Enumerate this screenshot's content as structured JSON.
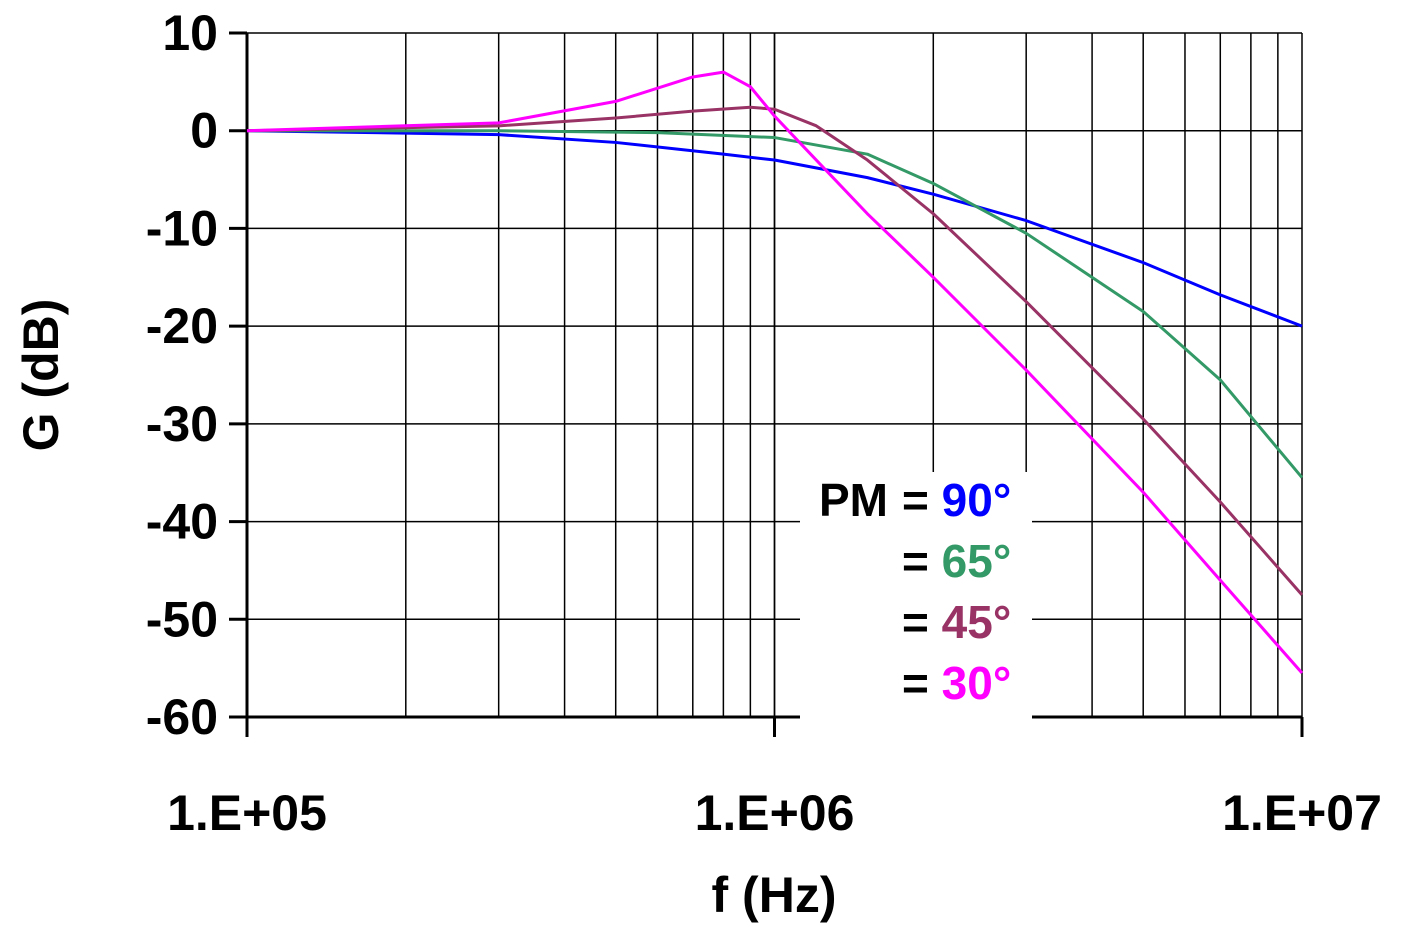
{
  "chart_data": {
    "type": "line",
    "xlabel": "f (Hz)",
    "ylabel": "G (dB)",
    "xscale": "log",
    "xlim": [
      100000,
      10000000
    ],
    "ylim": [
      -60,
      10
    ],
    "x_ticks": [
      "1.E+05",
      "1.E+06",
      "1.E+07"
    ],
    "y_ticks": [
      "10",
      "0",
      "-10",
      "-20",
      "-30",
      "-40",
      "-50",
      "-60"
    ],
    "grid": true,
    "legend": {
      "placement": "bottom-center",
      "prefix": "PM",
      "entries": [
        {
          "text": "= 90°",
          "color": "#0000ff"
        },
        {
          "text": "= 65°",
          "color": "#339966"
        },
        {
          "text": "= 45°",
          "color": "#993366"
        },
        {
          "text": "= 30°",
          "color": "#ff00ff"
        }
      ]
    },
    "series": [
      {
        "color": "#0000ff",
        "points": [
          [
            100000,
            0
          ],
          [
            300000,
            -0.4
          ],
          [
            500000,
            -1.2
          ],
          [
            800000,
            -2.4
          ],
          [
            1000000,
            -3
          ],
          [
            1500000,
            -4.8
          ],
          [
            2000000,
            -6.5
          ],
          [
            3000000,
            -9.2
          ],
          [
            5000000,
            -13.5
          ],
          [
            7000000,
            -16.8
          ],
          [
            10000000,
            -20
          ]
        ]
      },
      {
        "color": "#339966",
        "points": [
          [
            100000,
            0
          ],
          [
            300000,
            0
          ],
          [
            600000,
            -0.2
          ],
          [
            1000000,
            -0.7
          ],
          [
            1500000,
            -2.4
          ],
          [
            2000000,
            -5.4
          ],
          [
            3000000,
            -10.5
          ],
          [
            5000000,
            -18.5
          ],
          [
            7000000,
            -25.5
          ],
          [
            10000000,
            -35.5
          ]
        ]
      },
      {
        "color": "#993366",
        "points": [
          [
            100000,
            0
          ],
          [
            300000,
            0.5
          ],
          [
            500000,
            1.3
          ],
          [
            700000,
            2.0
          ],
          [
            900000,
            2.4
          ],
          [
            1000000,
            2.2
          ],
          [
            1200000,
            0.5
          ],
          [
            1500000,
            -3
          ],
          [
            2000000,
            -8.5
          ],
          [
            3000000,
            -17.5
          ],
          [
            5000000,
            -29.5
          ],
          [
            7000000,
            -38
          ],
          [
            10000000,
            -47.5
          ]
        ]
      },
      {
        "color": "#ff00ff",
        "points": [
          [
            100000,
            0
          ],
          [
            300000,
            0.8
          ],
          [
            500000,
            3
          ],
          [
            700000,
            5.5
          ],
          [
            800000,
            6.0
          ],
          [
            900000,
            4.5
          ],
          [
            1000000,
            1.5
          ],
          [
            1200000,
            -3
          ],
          [
            1500000,
            -8.5
          ],
          [
            2000000,
            -15
          ],
          [
            3000000,
            -24.5
          ],
          [
            5000000,
            -37
          ],
          [
            7000000,
            -46
          ],
          [
            10000000,
            -55.5
          ]
        ]
      }
    ]
  }
}
